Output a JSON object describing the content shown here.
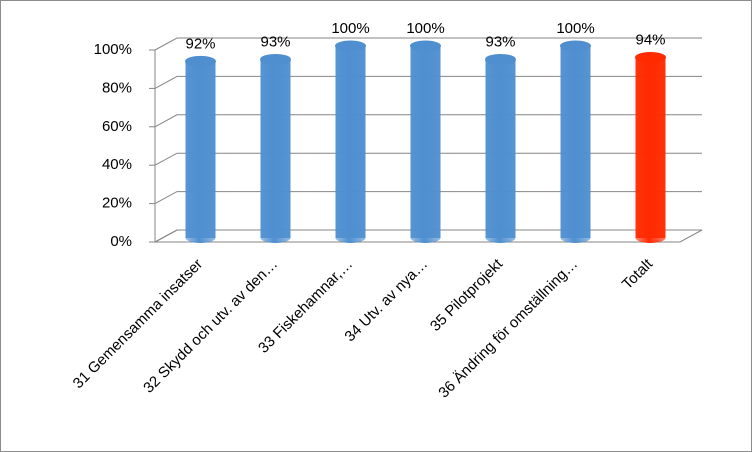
{
  "chart_data": {
    "type": "bar",
    "categories": [
      "31 Gemensamma insatser",
      "32 Skydd och utv. av den…",
      "33 Fiskehamnar,…",
      "34 Utv. av nya…",
      "35 Pilotprojekt",
      "36 Ändring för omställning…",
      "Totalt"
    ],
    "values": [
      92,
      93,
      100,
      100,
      93,
      100,
      94
    ],
    "value_labels": [
      "92%",
      "93%",
      "100%",
      "100%",
      "93%",
      "100%",
      "94%"
    ],
    "colors": [
      "#4f8fd0",
      "#4f8fd0",
      "#4f8fd0",
      "#4f8fd0",
      "#4f8fd0",
      "#4f8fd0",
      "#ff2a00"
    ],
    "ylim": [
      0,
      100
    ],
    "yticks": [
      {
        "value": 0,
        "label": "0%"
      },
      {
        "value": 20,
        "label": "20%"
      },
      {
        "value": 40,
        "label": "40%"
      },
      {
        "value": 60,
        "label": "60%"
      },
      {
        "value": 80,
        "label": "80%"
      },
      {
        "value": 100,
        "label": "100%"
      }
    ],
    "grid": true
  }
}
